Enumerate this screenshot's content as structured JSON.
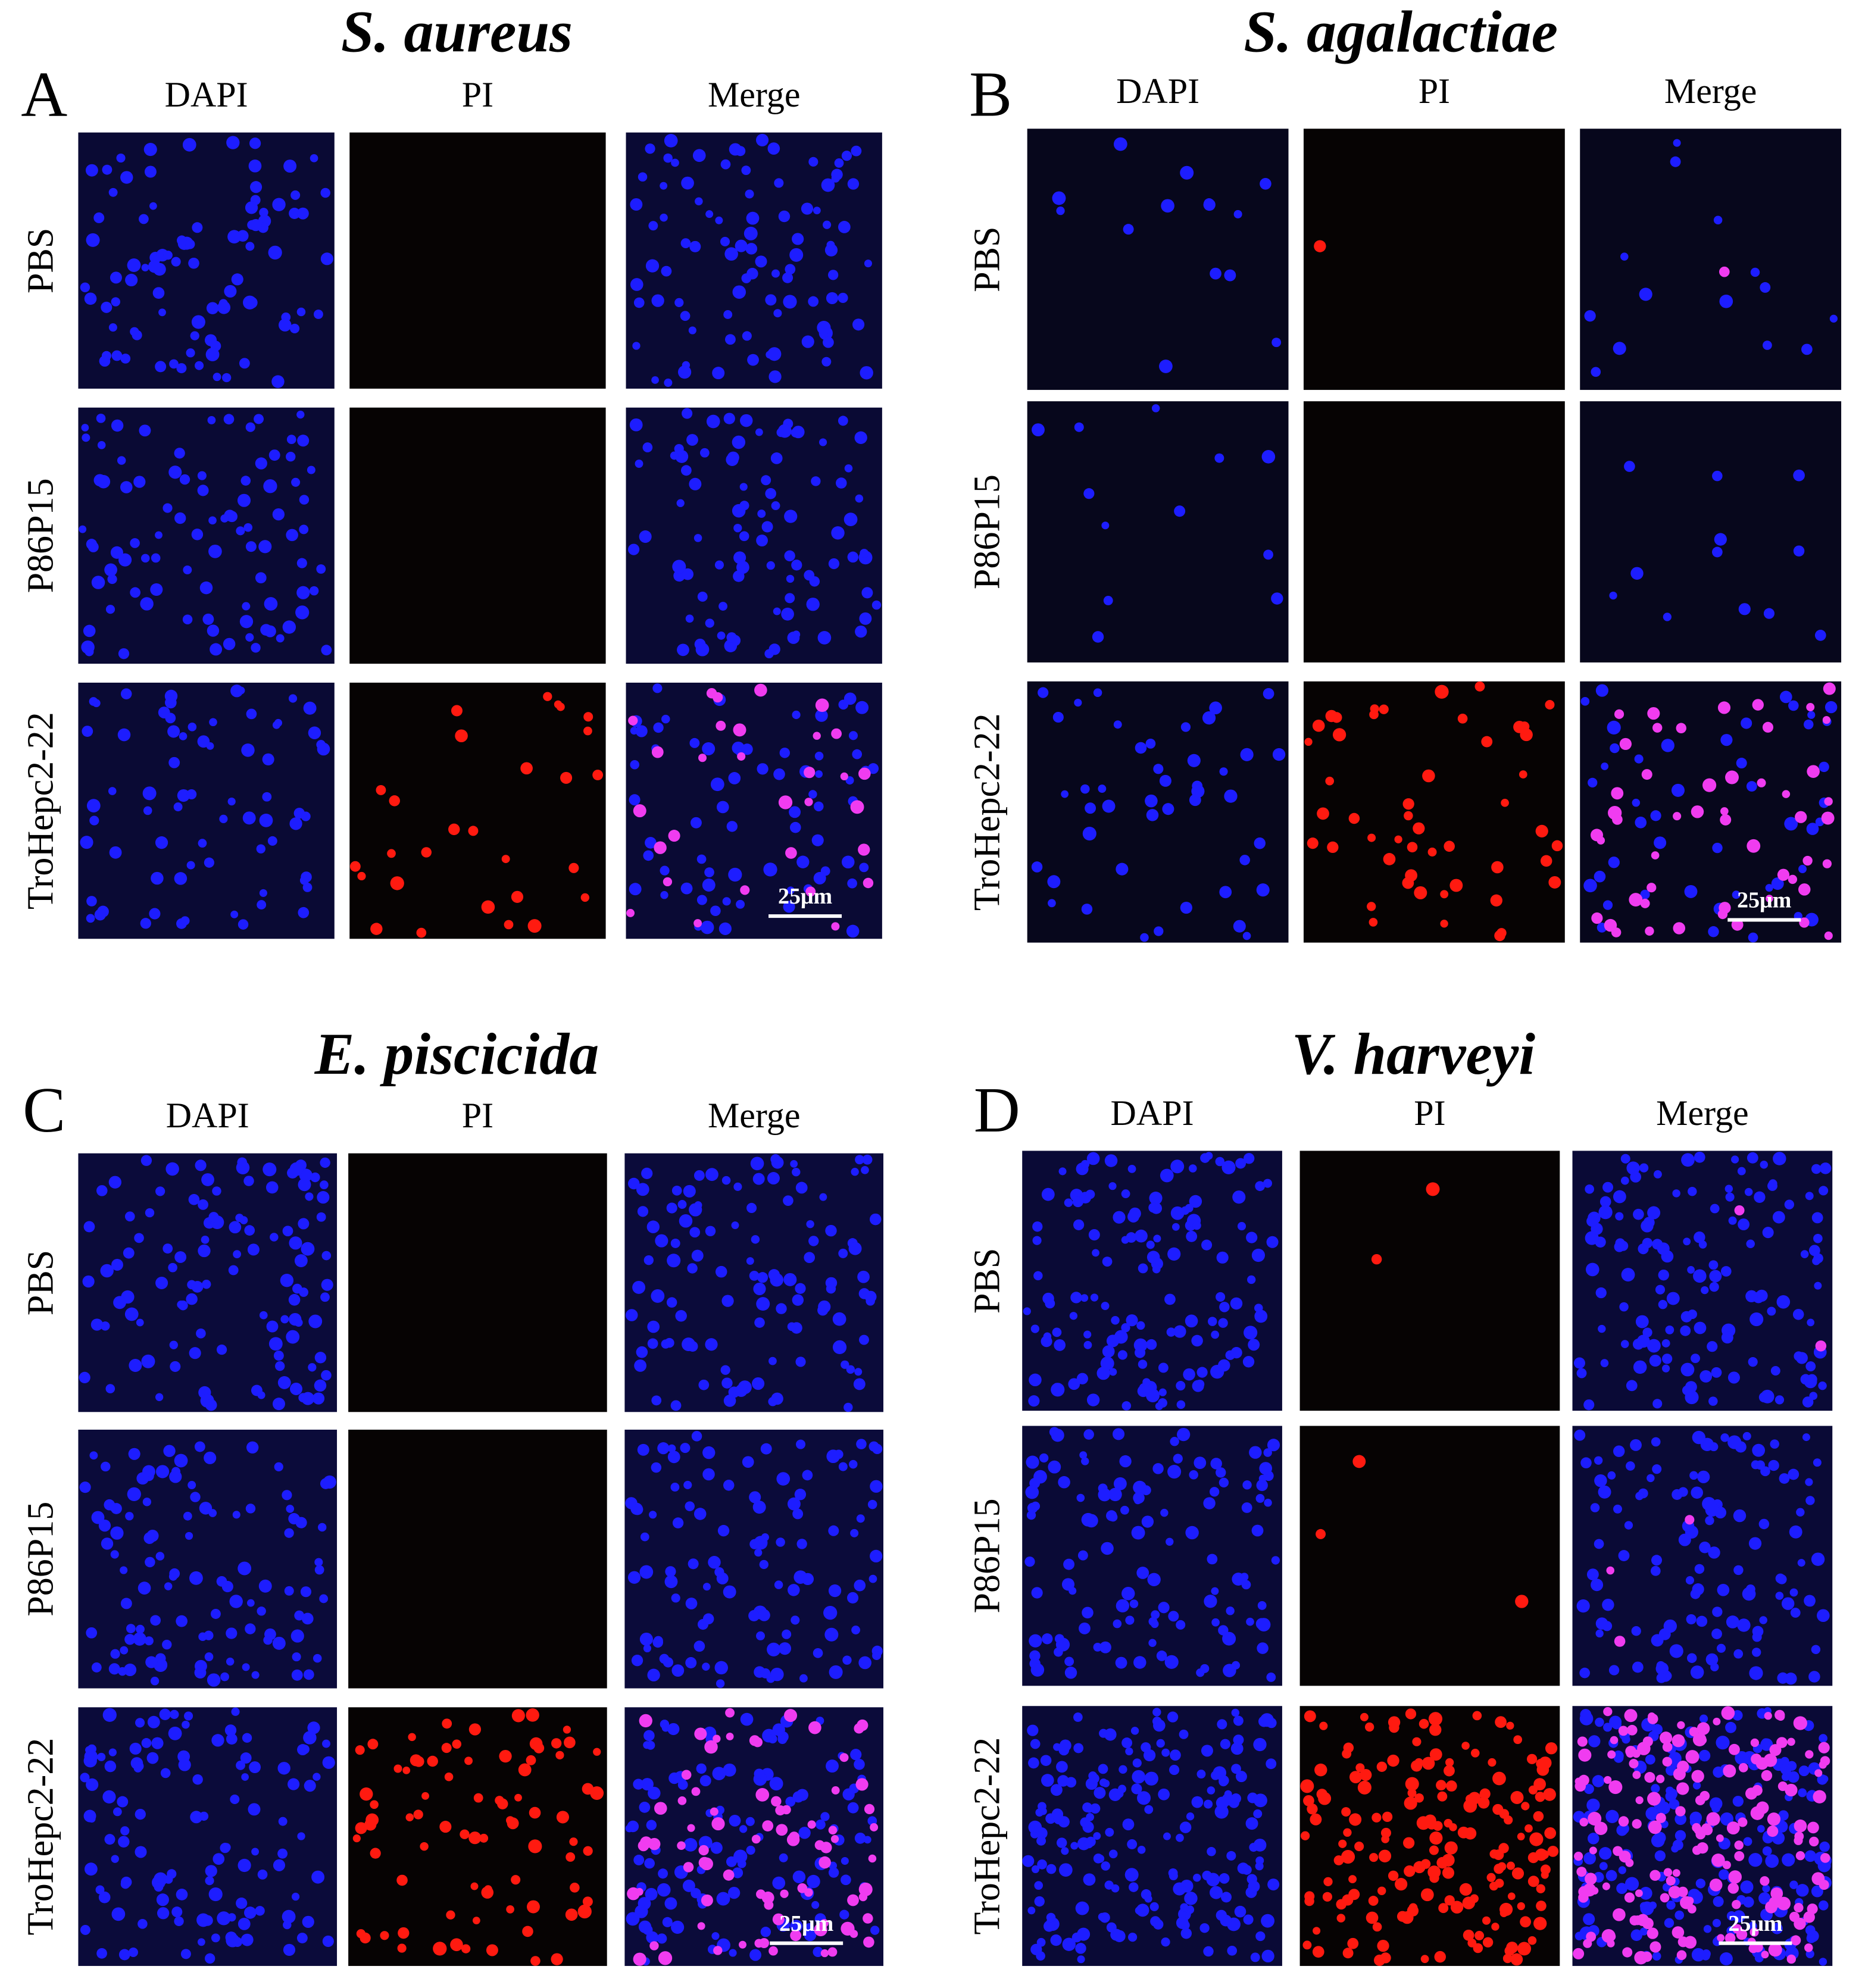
{
  "panels": [
    {
      "letter": "A",
      "title": "S. aureus",
      "columns": [
        "DAPI",
        "PI",
        "Merge"
      ],
      "rows": [
        "PBS",
        "P86P15",
        "TroHepc2-22"
      ],
      "scale_bar": "25μm"
    },
    {
      "letter": "B",
      "title": "S. agalactiae",
      "columns": [
        "DAPI",
        "PI",
        "Merge"
      ],
      "rows": [
        "PBS",
        "P86P15",
        "TroHepc2-22"
      ],
      "scale_bar": "25μm"
    },
    {
      "letter": "C",
      "title": "E. piscicida",
      "columns": [
        "DAPI",
        "PI",
        "Merge"
      ],
      "rows": [
        "PBS",
        "P86P15",
        "TroHepc2-22"
      ],
      "scale_bar": "25μm"
    },
    {
      "letter": "D",
      "title": "V. harveyi",
      "columns": [
        "DAPI",
        "PI",
        "Merge"
      ],
      "rows": [
        "PBS",
        "P86P15",
        "TroHepc2-22"
      ],
      "scale_bar": "25μm"
    }
  ]
}
